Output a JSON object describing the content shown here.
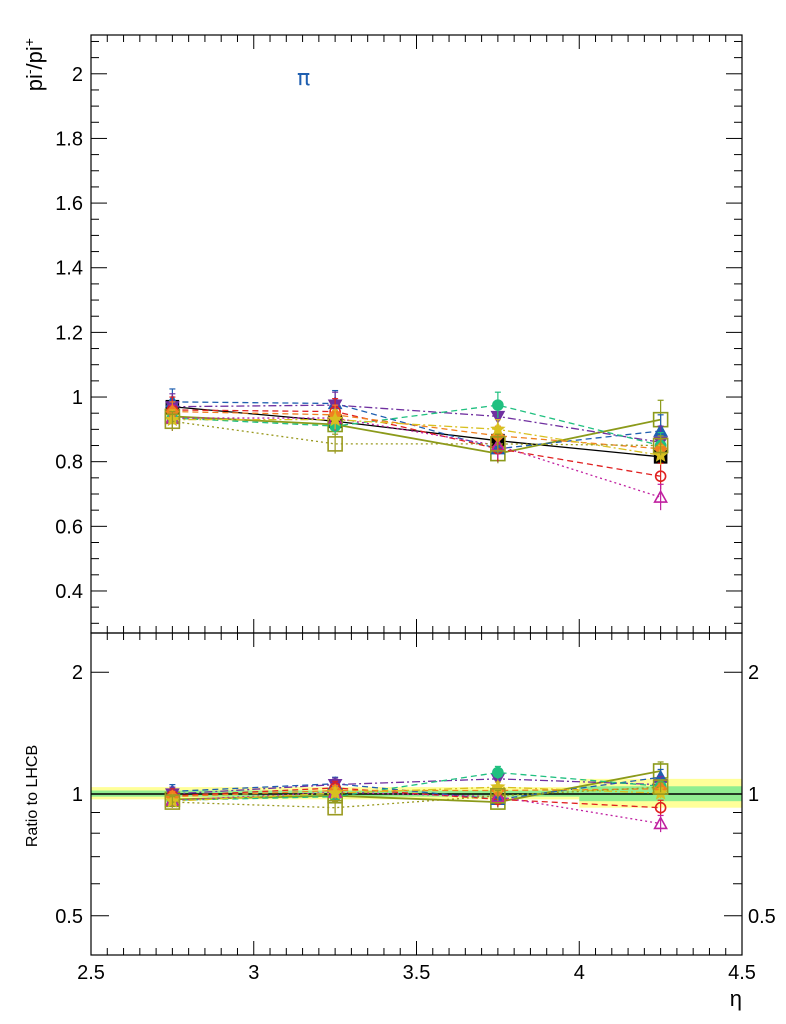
{
  "chart_data": [
    {
      "type": "scatter",
      "panel": "top",
      "ylabel": "pi-/pi+",
      "annotation": "π",
      "annotation_color": "#1f5fb0",
      "xlim": [
        2.5,
        4.5
      ],
      "ylim": [
        0.27,
        2.12
      ],
      "y_ticks": [
        0.4,
        0.6,
        0.8,
        1.0,
        1.2,
        1.4,
        1.6,
        1.8,
        2.0
      ],
      "y_tick_labels": [
        "0.4",
        "0.6",
        "0.8",
        "1",
        "1.2",
        "1.4",
        "1.6",
        "1.8",
        "2"
      ],
      "x": [
        2.75,
        3.25,
        3.75,
        4.25
      ],
      "series": [
        {
          "color": "#000000",
          "marker": "square-filled",
          "line": "none",
          "values": [
            0.97,
            0.925,
            0.865,
            0.815
          ],
          "err": [
            0.02,
            0.02,
            0.025,
            0.02
          ]
        },
        {
          "color": "#8b9a1a",
          "marker": "square-open",
          "line": "solid",
          "values": [
            0.94,
            0.915,
            0.825,
            0.93
          ],
          "err": [
            0.03,
            0.03,
            0.03,
            0.06
          ]
        },
        {
          "color": "#1f5fb0",
          "marker": "triangle-up-filled",
          "line": "dashed",
          "values": [
            0.985,
            0.98,
            0.84,
            0.895
          ],
          "err": [
            0.04,
            0.04,
            0.04,
            0.05
          ]
        },
        {
          "color": "#7030a0",
          "marker": "triangle-down-filled",
          "line": "dashdot",
          "values": [
            0.97,
            0.975,
            0.94,
            0.86
          ],
          "err": [
            0.04,
            0.04,
            0.04,
            0.05
          ]
        },
        {
          "color": "#20c080",
          "marker": "circle-filled",
          "line": "dashed",
          "values": [
            0.935,
            0.91,
            0.975,
            0.85
          ],
          "err": [
            0.03,
            0.03,
            0.04,
            0.04
          ]
        },
        {
          "color": "#e02020",
          "marker": "circle-open",
          "line": "dashed",
          "values": [
            0.96,
            0.955,
            0.84,
            0.755
          ],
          "err": [
            0.04,
            0.04,
            0.04,
            0.04
          ]
        },
        {
          "color": "#c020a0",
          "marker": "triangle-up-open",
          "line": "dotted",
          "values": [
            0.935,
            0.935,
            0.85,
            0.69
          ],
          "err": [
            0.04,
            0.04,
            0.04,
            0.04
          ]
        },
        {
          "color": "#f08020",
          "marker": "diamond-filled",
          "line": "dashed",
          "values": [
            0.955,
            0.945,
            0.88,
            0.84
          ],
          "err": [
            0.03,
            0.03,
            0.03,
            0.03
          ]
        },
        {
          "color": "#d8c020",
          "marker": "star-filled",
          "line": "dashdot",
          "values": [
            0.93,
            0.93,
            0.9,
            0.82
          ],
          "err": [
            0.03,
            0.03,
            0.03,
            0.03
          ]
        },
        {
          "color": "#9a9a20",
          "marker": "square-open",
          "line": "dotted",
          "values": [
            0.925,
            0.855,
            0.855,
            0.85
          ],
          "err": [
            0.03,
            0.03,
            0.03,
            0.03
          ]
        }
      ]
    },
    {
      "type": "scatter",
      "panel": "bottom",
      "ylabel": "Ratio to LHCB",
      "xlabel": "η",
      "xlim": [
        2.5,
        4.5
      ],
      "ylim": [
        0.4,
        2.5
      ],
      "y_scale": "log",
      "x_ticks": [
        2.5,
        3.0,
        3.5,
        4.0,
        4.5
      ],
      "x_tick_labels": [
        "2.5",
        "3",
        "3.5",
        "4",
        "4.5"
      ],
      "y_ticks": [
        0.5,
        1.0,
        2.0
      ],
      "y_tick_labels": [
        "0.5",
        "1",
        "2"
      ],
      "bands": [
        {
          "x": [
            2.5,
            4.0
          ],
          "outer": [
            0.97,
            1.04
          ],
          "inner": [
            0.985,
            1.02
          ]
        },
        {
          "x": [
            4.0,
            4.5
          ],
          "outer": [
            0.925,
            1.09
          ],
          "inner": [
            0.96,
            1.045
          ]
        }
      ],
      "band_colors": {
        "outer": "#ffff99",
        "inner": "#90ee90"
      },
      "x": [
        2.75,
        3.25,
        3.75,
        4.25
      ],
      "series": [
        {
          "color": "#8b9a1a",
          "marker": "square-open",
          "line": "solid",
          "values": [
            0.97,
            0.99,
            0.955,
            1.14
          ],
          "err": [
            0.03,
            0.03,
            0.03,
            0.06
          ]
        },
        {
          "color": "#1f5fb0",
          "marker": "triangle-up-filled",
          "line": "dashed",
          "values": [
            1.015,
            1.06,
            0.97,
            1.1
          ],
          "err": [
            0.04,
            0.04,
            0.04,
            0.05
          ]
        },
        {
          "color": "#7030a0",
          "marker": "triangle-down-filled",
          "line": "dashdot",
          "values": [
            1.0,
            1.055,
            1.09,
            1.055
          ],
          "err": [
            0.04,
            0.04,
            0.04,
            0.05
          ]
        },
        {
          "color": "#20c080",
          "marker": "circle-filled",
          "line": "dashed",
          "values": [
            0.965,
            0.985,
            1.13,
            1.045
          ],
          "err": [
            0.03,
            0.03,
            0.04,
            0.04
          ]
        },
        {
          "color": "#e02020",
          "marker": "circle-open",
          "line": "dashed",
          "values": [
            0.99,
            1.035,
            0.97,
            0.925
          ],
          "err": [
            0.04,
            0.04,
            0.04,
            0.04
          ]
        },
        {
          "color": "#c020a0",
          "marker": "triangle-up-open",
          "line": "dotted",
          "values": [
            0.965,
            1.01,
            0.985,
            0.845
          ],
          "err": [
            0.04,
            0.04,
            0.04,
            0.04
          ]
        },
        {
          "color": "#f08020",
          "marker": "diamond-filled",
          "line": "dashed",
          "values": [
            0.985,
            1.02,
            1.02,
            1.03
          ],
          "err": [
            0.03,
            0.03,
            0.03,
            0.03
          ]
        },
        {
          "color": "#d8c020",
          "marker": "star-filled",
          "line": "dashdot",
          "values": [
            0.96,
            1.005,
            1.04,
            1.005
          ],
          "err": [
            0.03,
            0.03,
            0.03,
            0.03
          ]
        },
        {
          "color": "#9a9a20",
          "marker": "square-open",
          "line": "dotted",
          "values": [
            0.955,
            0.925,
            0.99,
            1.04
          ],
          "err": [
            0.03,
            0.03,
            0.03,
            0.03
          ]
        }
      ]
    }
  ]
}
